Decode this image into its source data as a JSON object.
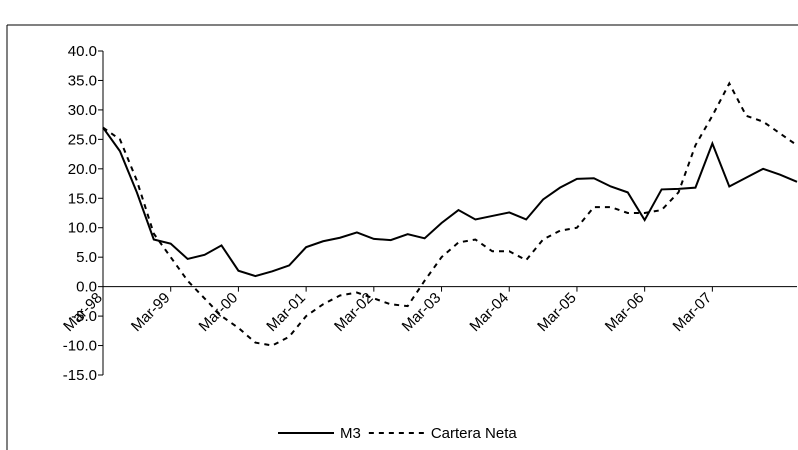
{
  "chart_data": {
    "type": "line",
    "categories": [
      "Mar-98",
      null,
      null,
      null,
      "Mar-99",
      null,
      null,
      null,
      "Mar-00",
      null,
      null,
      null,
      "Mar-01",
      null,
      null,
      null,
      "Mar-02",
      null,
      null,
      null,
      "Mar-03",
      null,
      null,
      null,
      "Mar-04",
      null,
      null,
      null,
      "Mar-05",
      null,
      null,
      null,
      "Mar-06",
      null,
      null,
      null,
      "Mar-07",
      null,
      null,
      null,
      null,
      null
    ],
    "series": [
      {
        "name": "M3",
        "color": "#000000",
        "dash": "solid",
        "values": [
          27,
          23,
          16,
          8,
          7.3,
          4.7,
          5.4,
          7,
          2.7,
          1.8,
          2.6,
          3.6,
          6.7,
          7.7,
          8.3,
          9.2,
          8.1,
          7.9,
          8.9,
          8.2,
          10.8,
          13,
          11.4,
          12,
          12.6,
          11.4,
          14.8,
          16.8,
          18.3,
          18.4,
          17,
          16,
          11.3,
          16.5,
          16.6,
          16.8,
          24.3,
          17,
          18.5,
          20,
          19,
          17.8
        ]
      },
      {
        "name": "Cartera Neta",
        "color": "#000000",
        "dash": "dashed",
        "values": [
          27,
          25,
          18,
          9,
          5,
          1,
          -2,
          -5,
          -7,
          -9.5,
          -10,
          -8.5,
          -5,
          -3,
          -1.5,
          -1,
          -2,
          -3,
          -3.3,
          1,
          5,
          7.5,
          8,
          6,
          6,
          4.5,
          8,
          9.5,
          10,
          13.5,
          13.5,
          12.5,
          12.5,
          13,
          16,
          24,
          29,
          34.5,
          29,
          28,
          26,
          24
        ]
      }
    ],
    "ylim": [
      -15,
      40
    ],
    "yticks": [
      {
        "value": -15,
        "label": "-15.0"
      },
      {
        "value": -10,
        "label": "-10.0"
      },
      {
        "value": -5,
        "label": "-5.0"
      },
      {
        "value": 0,
        "label": "0.0"
      },
      {
        "value": 5,
        "label": "5.0"
      },
      {
        "value": 10,
        "label": "10.0"
      },
      {
        "value": 15,
        "label": "15.0"
      },
      {
        "value": 20,
        "label": "20.0"
      },
      {
        "value": 25,
        "label": "25.0"
      },
      {
        "value": 30,
        "label": "30.0"
      },
      {
        "value": 35,
        "label": "35.0"
      },
      {
        "value": 40,
        "label": "40.0"
      }
    ],
    "grid": false,
    "legend": "bottom"
  }
}
